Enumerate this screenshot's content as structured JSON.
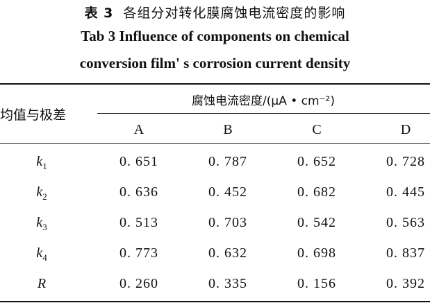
{
  "caption": {
    "cn_label": "表 3",
    "cn_title": "各组分对转化膜腐蚀电流密度的影响",
    "en_line1": "Tab 3  Influence of components on chemical",
    "en_line2": "conversion film' s corrosion current density"
  },
  "table": {
    "stub_header": "均值与极差",
    "group_header": "腐蚀电流密度/(μA • cm⁻²)",
    "columns": [
      "A",
      "B",
      "C",
      "D"
    ],
    "rows": [
      {
        "label": "k",
        "sub": "1",
        "values": [
          "0. 651",
          "0. 787",
          "0. 652",
          "0. 728"
        ]
      },
      {
        "label": "k",
        "sub": "2",
        "values": [
          "0. 636",
          "0. 452",
          "0. 682",
          "0. 445"
        ]
      },
      {
        "label": "k",
        "sub": "3",
        "values": [
          "0. 513",
          "0. 703",
          "0. 542",
          "0. 563"
        ]
      },
      {
        "label": "k",
        "sub": "4",
        "values": [
          "0. 773",
          "0. 632",
          "0. 698",
          "0. 837"
        ]
      },
      {
        "label": "R",
        "sub": "",
        "values": [
          "0. 260",
          "0. 335",
          "0. 156",
          "0. 392"
        ]
      }
    ]
  }
}
